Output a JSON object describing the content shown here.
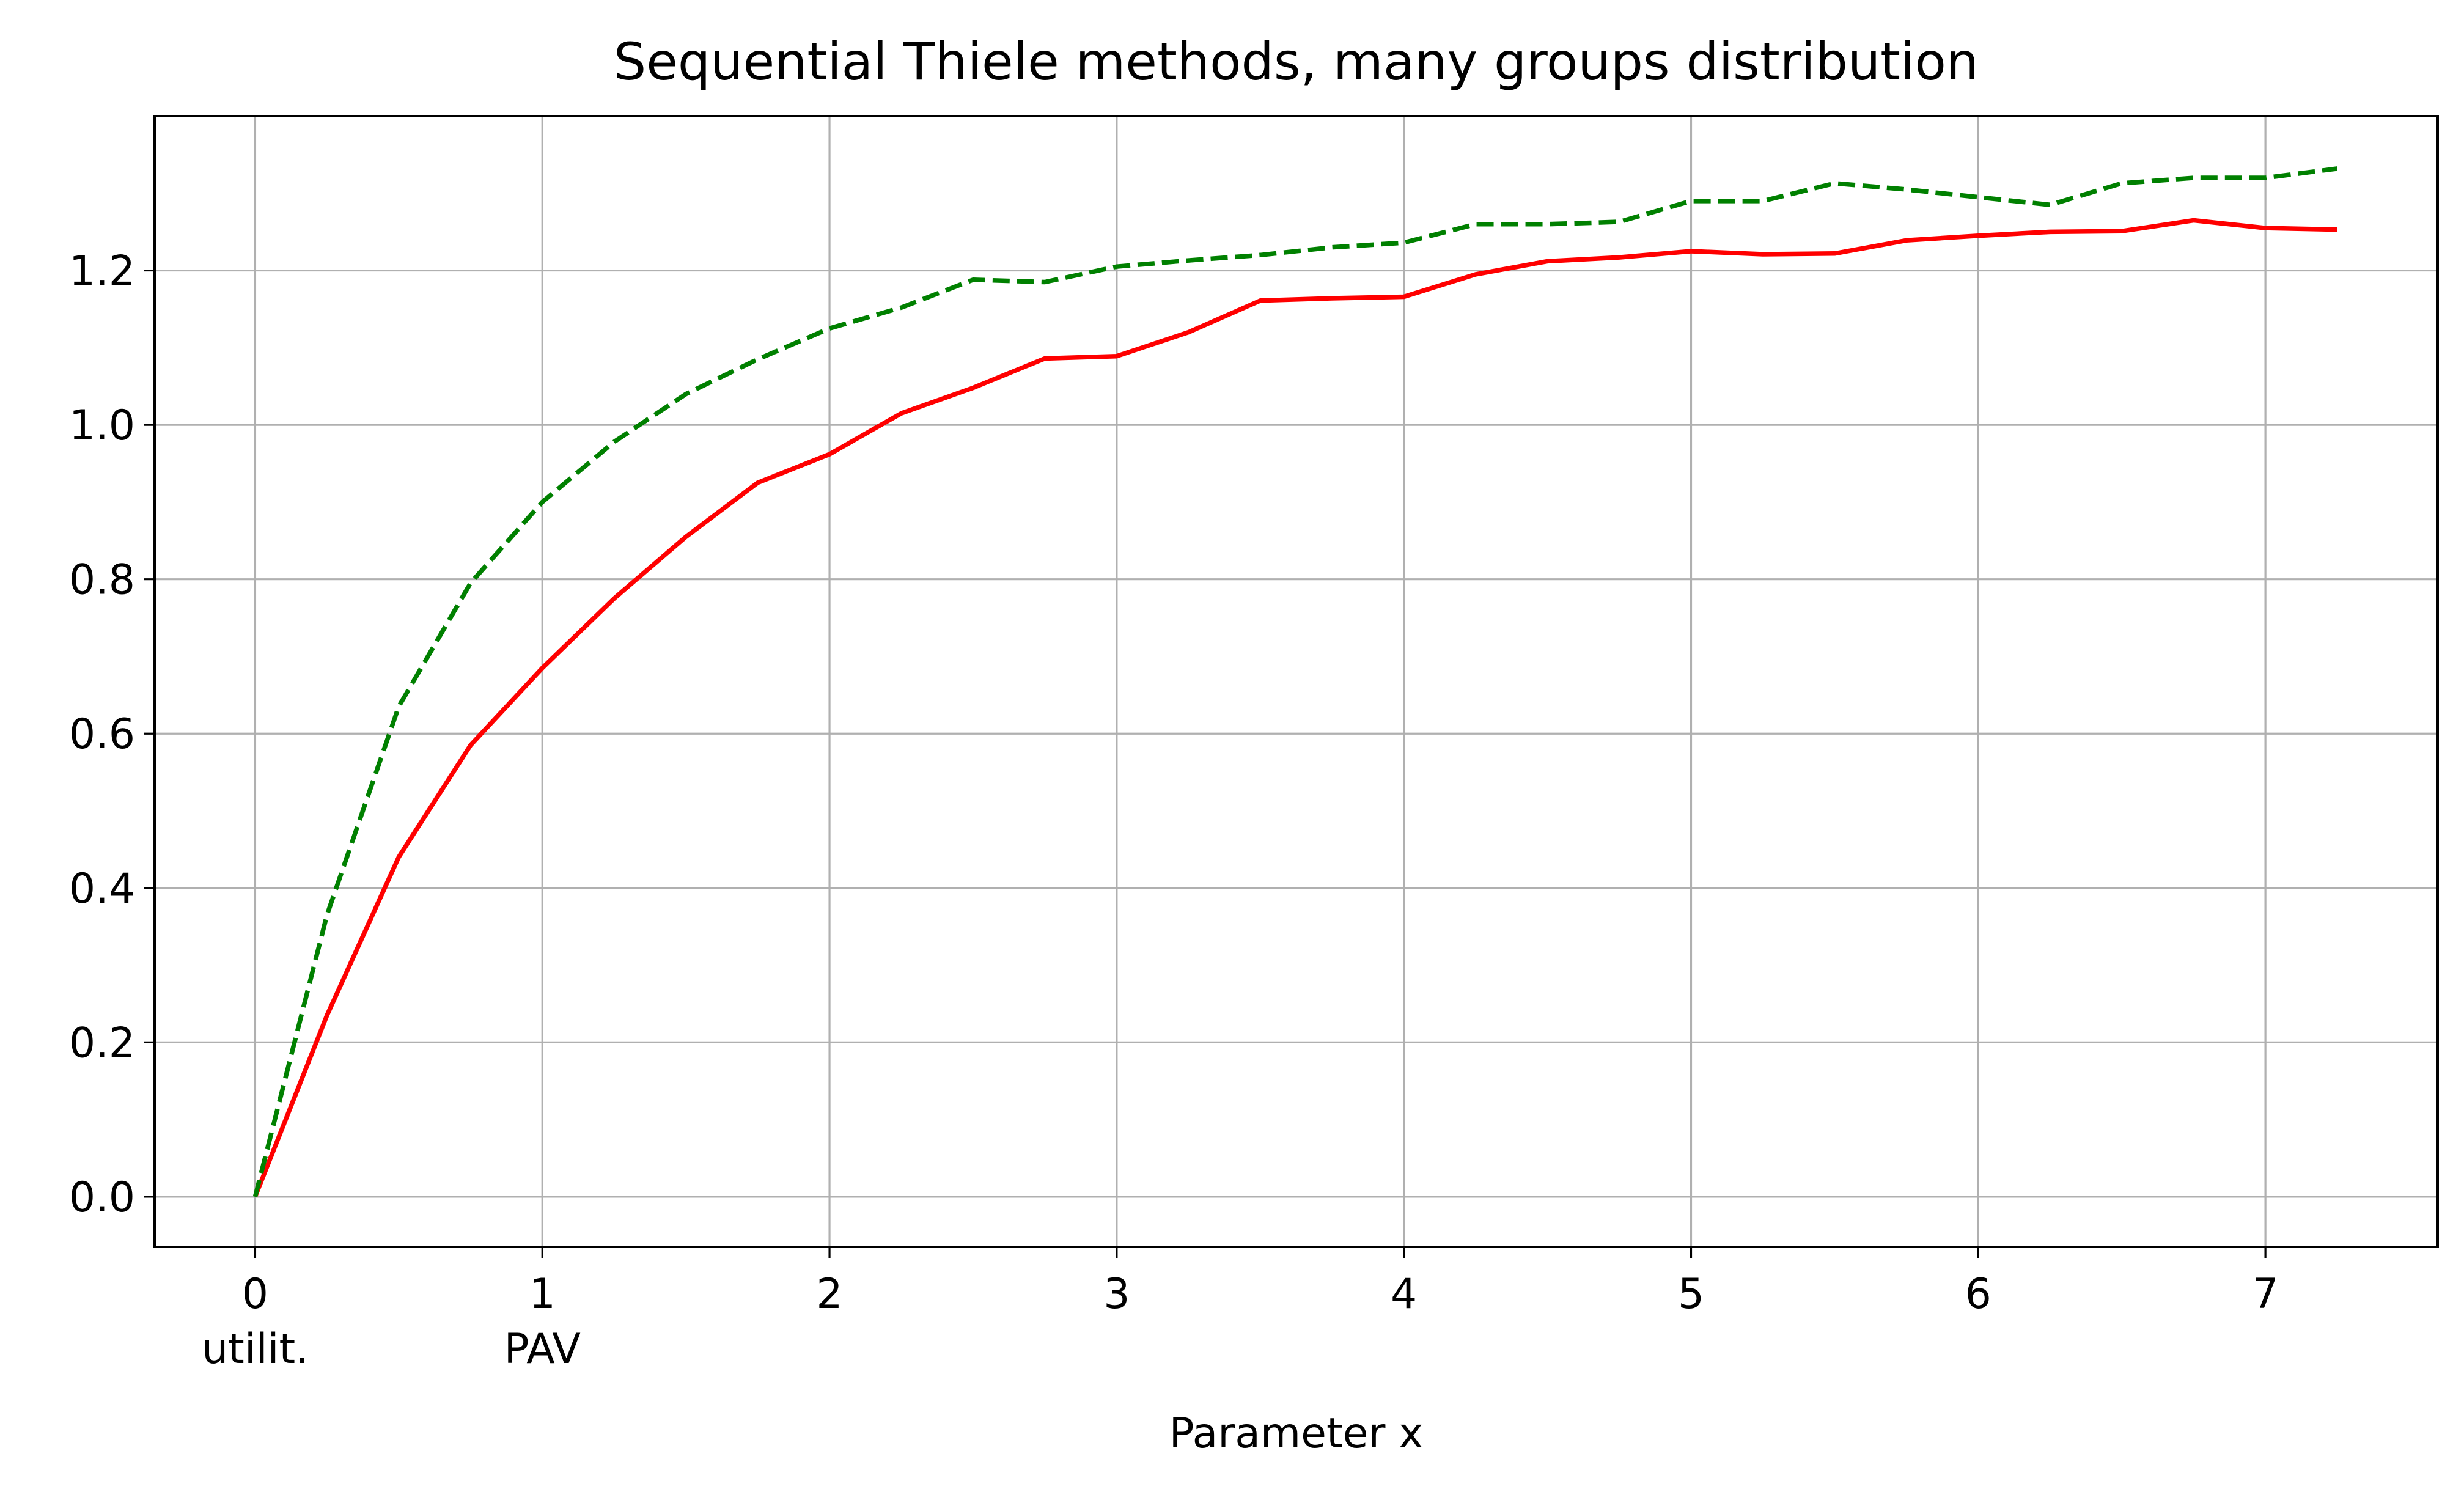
{
  "chart_data": {
    "type": "line",
    "title": "Sequential Thiele methods, many groups distribution",
    "xlabel": "Parameter x",
    "ylabel": "",
    "xlim": [
      -0.35,
      7.6
    ],
    "ylim": [
      -0.065,
      1.4
    ],
    "xticks": [
      0,
      1,
      2,
      3,
      4,
      5,
      6,
      7
    ],
    "xtick_labels": [
      "0",
      "1",
      "2",
      "3",
      "4",
      "5",
      "6",
      "7"
    ],
    "xtick_sublabels": [
      {
        "x": 0,
        "text": "utilit."
      },
      {
        "x": 1,
        "text": "PAV"
      }
    ],
    "yticks": [
      0.0,
      0.2,
      0.4,
      0.6,
      0.8,
      1.0,
      1.2
    ],
    "ytick_labels": [
      "0.0",
      "0.2",
      "0.4",
      "0.6",
      "0.8",
      "1.0",
      "1.2"
    ],
    "grid": true,
    "legend": false,
    "x": [
      0,
      0.25,
      0.5,
      0.75,
      1.0,
      1.25,
      1.5,
      1.75,
      2.0,
      2.25,
      2.5,
      2.75,
      3.0,
      3.25,
      3.5,
      3.75,
      4.0,
      4.25,
      4.5,
      4.75,
      5.0,
      5.25,
      5.5,
      5.75,
      6.0,
      6.25,
      6.5,
      6.75,
      7.0,
      7.25
    ],
    "series": [
      {
        "color": "#ff0000",
        "linestyle": "solid",
        "values": [
          0.0,
          0.235,
          0.44,
          0.585,
          0.685,
          0.775,
          0.855,
          0.925,
          0.962,
          1.015,
          1.048,
          1.086,
          1.089,
          1.12,
          1.161,
          1.164,
          1.166,
          1.195,
          1.212,
          1.217,
          1.225,
          1.221,
          1.222,
          1.239,
          1.245,
          1.25,
          1.251,
          1.265,
          1.255,
          1.253
        ]
      },
      {
        "color": "#008000",
        "linestyle": "dashed",
        "values": [
          0.0,
          0.365,
          0.635,
          0.795,
          0.9,
          0.978,
          1.04,
          1.085,
          1.125,
          1.152,
          1.188,
          1.185,
          1.205,
          1.213,
          1.22,
          1.23,
          1.236,
          1.26,
          1.26,
          1.263,
          1.29,
          1.29,
          1.313,
          1.305,
          1.295,
          1.285,
          1.313,
          1.32,
          1.32,
          1.332
        ]
      }
    ]
  }
}
